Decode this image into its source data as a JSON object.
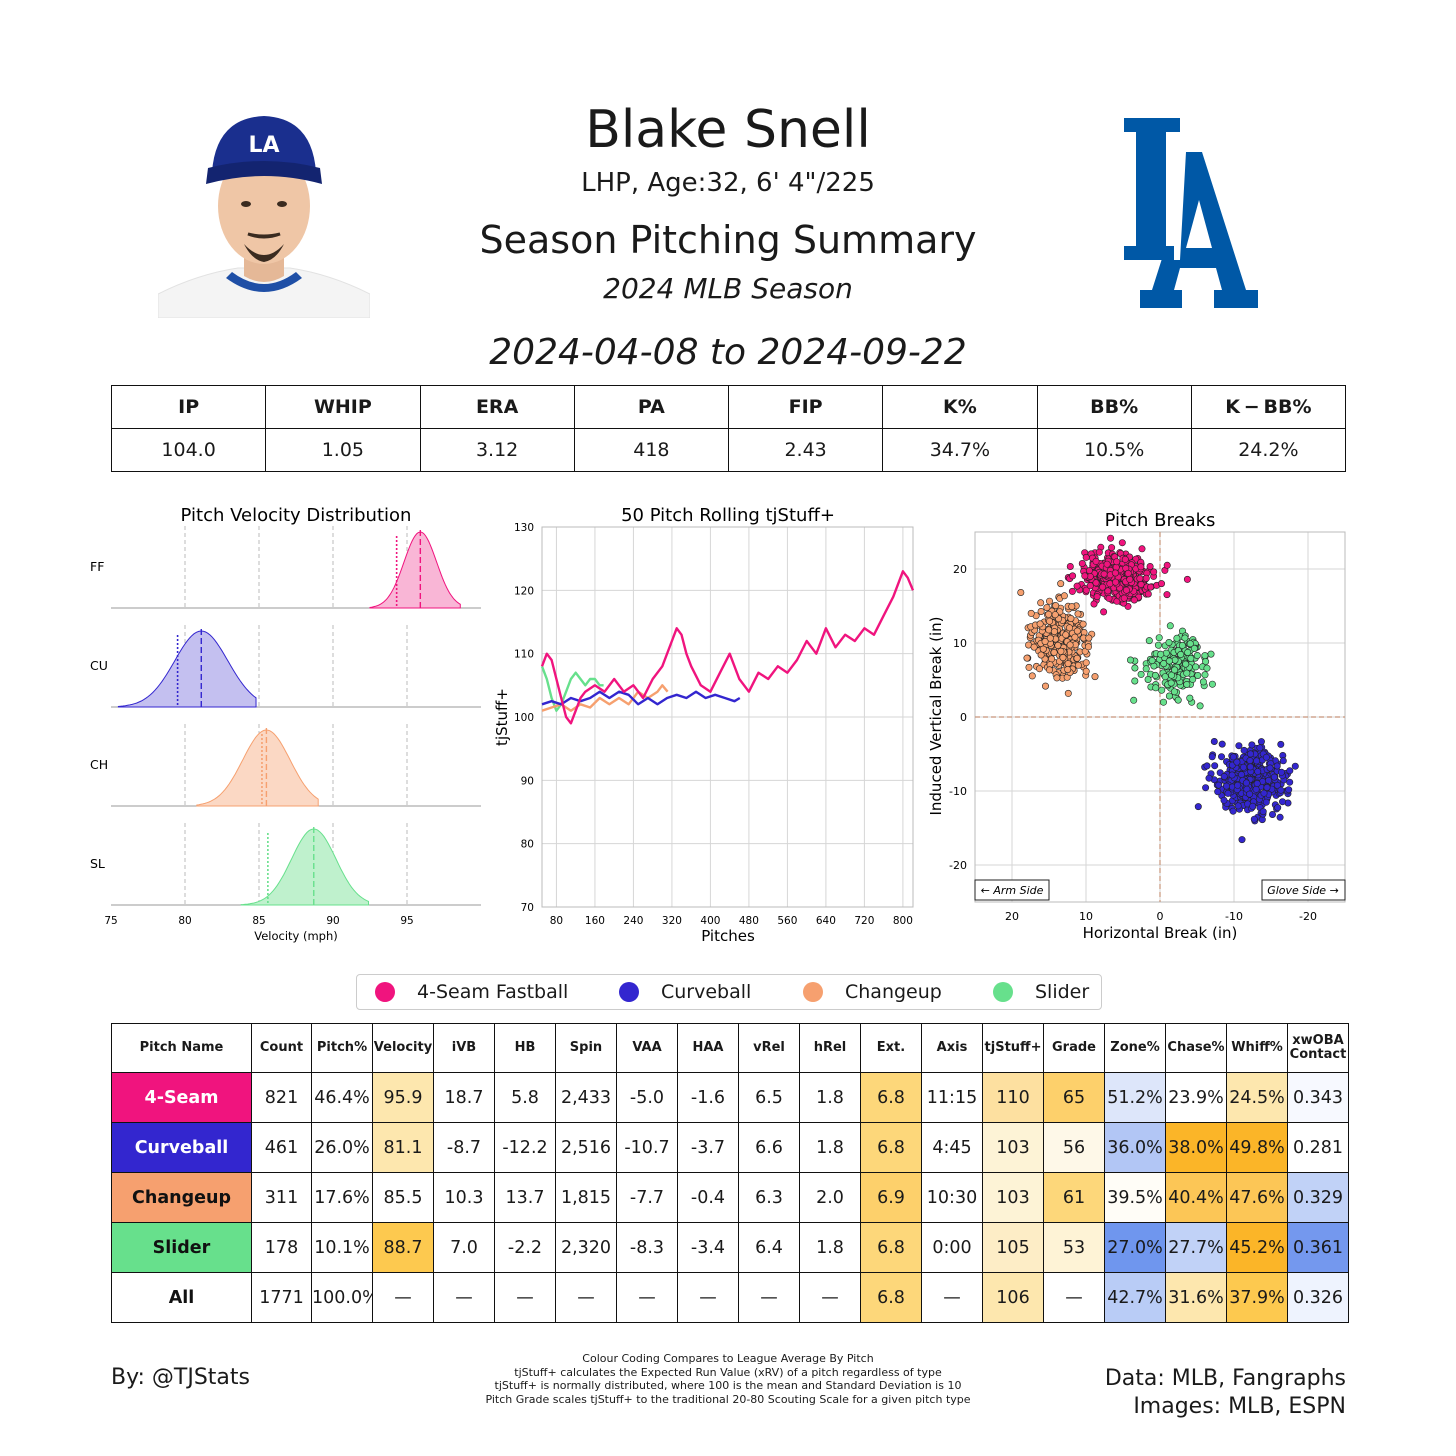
{
  "header": {
    "name": "Blake Snell",
    "bio": "LHP, Age:32, 6' 4\"/225",
    "summary_title": "Season Pitching Summary",
    "season": "2024 MLB Season",
    "date_range": "2024-04-08 to 2024-09-22"
  },
  "stats": {
    "headers": [
      "IP",
      "WHIP",
      "ERA",
      "PA",
      "FIP",
      "K%",
      "BB%",
      "K − BB%"
    ],
    "values": [
      "104.0",
      "1.05",
      "3.12",
      "418",
      "2.43",
      "34.7%",
      "10.5%",
      "24.2%"
    ]
  },
  "colors": {
    "4-Seam Fastball": "#F0147E",
    "Curveball": "#3326CF",
    "Changeup": "#F6A06F",
    "Slider": "#67E08C"
  },
  "legend": [
    "4-Seam Fastball",
    "Curveball",
    "Changeup",
    "Slider"
  ],
  "pitch_table": {
    "headers": [
      "Pitch Name",
      "Count",
      "Pitch%",
      "Velocity",
      "iVB",
      "HB",
      "Spin",
      "VAA",
      "HAA",
      "vRel",
      "hRel",
      "Ext.",
      "Axis",
      "tjStuff+",
      "Grade",
      "Zone%",
      "Chase%",
      "Whiff%",
      "xwOBA Contact"
    ],
    "rows": [
      {
        "name": "4-Seam",
        "color": "#F0147E",
        "text": "#ffffff",
        "cells": [
          "821",
          "46.4%",
          "95.9",
          "18.7",
          "5.8",
          "2,433",
          "-5.0",
          "-1.6",
          "6.5",
          "1.8",
          "6.8",
          "11:15",
          "110",
          "65",
          "51.2%",
          "23.9%",
          "24.5%",
          "0.343"
        ],
        "bg": [
          "",
          "",
          "#FDE7AE",
          "",
          "",
          "",
          "",
          "",
          "",
          "",
          "#FDD77A",
          "",
          "#FDE0A0",
          "#FDD06B",
          "#DDE6FA",
          "#FFFFFF",
          "#FDE7AE",
          "#F7F9FF"
        ]
      },
      {
        "name": "Curveball",
        "color": "#3326CF",
        "text": "#ffffff",
        "cells": [
          "461",
          "26.0%",
          "81.1",
          "-8.7",
          "-12.2",
          "2,516",
          "-10.7",
          "-3.7",
          "6.6",
          "1.8",
          "6.8",
          "4:45",
          "103",
          "56",
          "36.0%",
          "38.0%",
          "49.8%",
          "0.281"
        ],
        "bg": [
          "",
          "",
          "#FDE7AE",
          "",
          "",
          "",
          "",
          "",
          "",
          "",
          "#FDD77A",
          "",
          "#FDF3D6",
          "#FEF8E8",
          "#B2C6F5",
          "#FBB528",
          "#FBB528",
          "#FFFFFF"
        ]
      },
      {
        "name": "Changeup",
        "color": "#F6A06F",
        "text": "#111111",
        "cells": [
          "311",
          "17.6%",
          "85.5",
          "10.3",
          "13.7",
          "1,815",
          "-7.7",
          "-0.4",
          "6.3",
          "2.0",
          "6.9",
          "10:30",
          "103",
          "61",
          "39.5%",
          "40.4%",
          "47.6%",
          "0.329"
        ],
        "bg": [
          "",
          "",
          "",
          "",
          "",
          "",
          "",
          "",
          "",
          "",
          "#FDD06B",
          "",
          "#FDF3D6",
          "#FDD77A",
          "#FFFDF7",
          "#FCC656",
          "#FCC656",
          "#C1D2F7"
        ]
      },
      {
        "name": "Slider",
        "color": "#67E08C",
        "text": "#111111",
        "cells": [
          "178",
          "10.1%",
          "88.7",
          "7.0",
          "-2.2",
          "2,320",
          "-8.3",
          "-3.4",
          "6.4",
          "1.8",
          "6.8",
          "0:00",
          "105",
          "53",
          "27.0%",
          "27.7%",
          "45.2%",
          "0.361"
        ],
        "bg": [
          "",
          "",
          "#FDC94F",
          "",
          "",
          "",
          "",
          "",
          "",
          "",
          "#FDD77A",
          "",
          "#FDEDC6",
          "#FEF3D6",
          "#6F96EE",
          "#C1D2F7",
          "#FBB528",
          "#7498EE"
        ]
      },
      {
        "name": "All",
        "color": "#ffffff",
        "text": "#111111",
        "cells": [
          "1771",
          "100.0%",
          "—",
          "—",
          "—",
          "—",
          "—",
          "—",
          "—",
          "—",
          "6.8",
          "—",
          "106",
          "—",
          "42.7%",
          "31.6%",
          "37.9%",
          "0.326"
        ],
        "bg": [
          "",
          "",
          "",
          "",
          "",
          "",
          "",
          "",
          "",
          "",
          "#FDD77A",
          "",
          "#FDE7AE",
          "",
          "#B9CCF6",
          "#FDE7AE",
          "#FDC94F",
          "#EEF3FE"
        ]
      }
    ]
  },
  "footer": {
    "left": "By: @TJStats",
    "right_line1": "Data: MLB, Fangraphs",
    "right_line2": "Images: MLB, ESPN",
    "notes": [
      "Colour Coding Compares to League Average By Pitch",
      "tjStuff+ calculates the Expected Run Value (xRV) of a pitch regardless of type",
      "tjStuff+ is normally distributed, where 100 is the mean and Standard Deviation is 10",
      "Pitch Grade scales tjStuff+ to the traditional 20-80 Scouting Scale for a given pitch type"
    ]
  },
  "logo_text": "LA",
  "chart_data": [
    {
      "type": "area",
      "title": "Pitch Velocity Distribution",
      "xlabel": "Velocity (mph)",
      "xlim": [
        75,
        100
      ],
      "xticks": [
        75,
        80,
        85,
        90,
        95
      ],
      "series": [
        {
          "name": "FF",
          "mean": 95.9,
          "sd": 1.1,
          "range": [
            92.5,
            98.6
          ],
          "league_avg": 94.3
        },
        {
          "name": "CU",
          "mean": 81.1,
          "sd": 1.8,
          "range": [
            75.5,
            84.8
          ],
          "league_avg": 79.5
        },
        {
          "name": "CH",
          "mean": 85.5,
          "sd": 1.6,
          "range": [
            80.8,
            89.0
          ],
          "league_avg": 85.2
        },
        {
          "name": "SL",
          "mean": 88.7,
          "sd": 1.5,
          "range": [
            83.8,
            92.4
          ],
          "league_avg": 85.6
        }
      ]
    },
    {
      "type": "line",
      "title": "50 Pitch Rolling tjStuff+",
      "xlabel": "Pitches",
      "ylabel": "tjStuff+",
      "xlim": [
        50,
        821
      ],
      "ylim": [
        70,
        130
      ],
      "xticks": [
        80,
        160,
        240,
        320,
        400,
        480,
        560,
        640,
        720,
        800
      ],
      "yticks": [
        70,
        80,
        90,
        100,
        110,
        120,
        130
      ],
      "series": [
        {
          "name": "4-Seam Fastball",
          "x": [
            50,
            60,
            70,
            80,
            90,
            100,
            110,
            120,
            130,
            140,
            160,
            180,
            200,
            220,
            240,
            260,
            280,
            300,
            320,
            330,
            340,
            350,
            360,
            380,
            400,
            420,
            440,
            460,
            480,
            500,
            520,
            540,
            560,
            580,
            600,
            620,
            640,
            660,
            680,
            700,
            720,
            740,
            760,
            780,
            800,
            810,
            821
          ],
          "y": [
            108,
            110,
            109,
            106,
            103,
            100,
            99,
            101,
            103,
            104,
            105,
            104,
            106,
            104,
            105,
            103,
            106,
            108,
            112,
            114,
            113,
            110,
            108,
            105,
            104,
            107,
            110,
            106,
            104,
            107,
            106,
            108,
            107,
            109,
            112,
            110,
            114,
            111,
            113,
            112,
            114,
            113,
            116,
            119,
            123,
            122,
            120
          ]
        },
        {
          "name": "Curveball",
          "x": [
            50,
            70,
            90,
            110,
            130,
            150,
            170,
            190,
            210,
            230,
            250,
            270,
            290,
            310,
            330,
            350,
            370,
            390,
            410,
            430,
            450,
            461
          ],
          "y": [
            102,
            102.5,
            102,
            103,
            102.5,
            103,
            104,
            103,
            104,
            103.5,
            102,
            103,
            102,
            103,
            103.5,
            103,
            104,
            103,
            103.5,
            103,
            102.5,
            103
          ]
        },
        {
          "name": "Changeup",
          "x": [
            50,
            70,
            90,
            110,
            130,
            150,
            170,
            190,
            210,
            230,
            250,
            270,
            290,
            300,
            311
          ],
          "y": [
            101,
            101.5,
            102,
            101,
            102,
            101.5,
            103,
            102,
            103,
            102,
            104,
            103,
            104,
            105,
            104
          ]
        },
        {
          "name": "Slider",
          "x": [
            50,
            60,
            70,
            80,
            90,
            100,
            110,
            120,
            130,
            140,
            150,
            160,
            170,
            178
          ],
          "y": [
            108,
            106,
            103,
            101,
            102,
            104,
            106,
            107,
            106,
            105,
            106,
            106,
            105,
            105
          ]
        }
      ]
    },
    {
      "type": "scatter",
      "title": "Pitch Breaks",
      "xlabel": "Horizontal Break (in)",
      "ylabel": "Induced Vertical Break (in)",
      "xlim": [
        25,
        -25
      ],
      "ylim": [
        -25,
        25
      ],
      "xticks": [
        20,
        10,
        0,
        -10,
        -20
      ],
      "yticks": [
        -20,
        -10,
        0,
        10,
        20
      ],
      "annotations": [
        "← Arm Side",
        "Glove Side →"
      ],
      "series": [
        {
          "name": "4-Seam Fastball",
          "center": [
            5.8,
            18.7
          ],
          "spread": [
            2.4,
            1.6
          ],
          "n": 821
        },
        {
          "name": "Curveball",
          "center": [
            -12.2,
            -8.7
          ],
          "spread": [
            2.4,
            2.1
          ],
          "n": 461
        },
        {
          "name": "Changeup",
          "center": [
            13.7,
            10.3
          ],
          "spread": [
            1.8,
            2.4
          ],
          "n": 311
        },
        {
          "name": "Slider",
          "center": [
            -2.2,
            7.0
          ],
          "spread": [
            2.2,
            2.1
          ],
          "n": 178
        }
      ]
    }
  ]
}
